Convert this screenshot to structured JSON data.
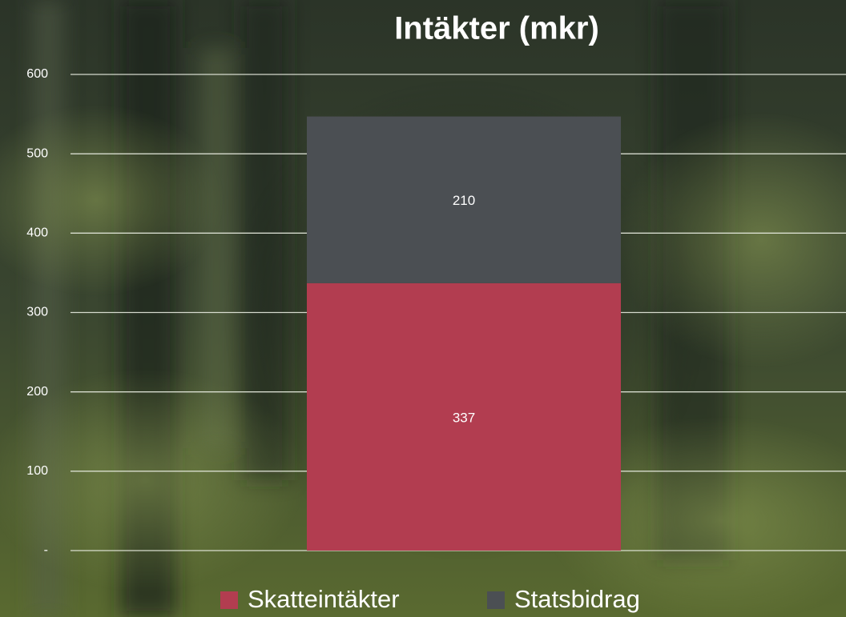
{
  "chart_data": {
    "type": "stacked_bar",
    "title": "Intäkter (mkr)",
    "categories": [
      null
    ],
    "series": [
      {
        "name": "Skatteintäkter",
        "color": "#b23d50",
        "values": [
          337
        ]
      },
      {
        "name": "Statsbidrag",
        "color": "#4b4f53",
        "values": [
          210
        ]
      }
    ],
    "ylim": [
      0,
      600
    ],
    "yticks": [
      {
        "value": 0,
        "label": "-"
      },
      100,
      200,
      300,
      400,
      500,
      600
    ],
    "grid": true,
    "legend": "bottom"
  }
}
